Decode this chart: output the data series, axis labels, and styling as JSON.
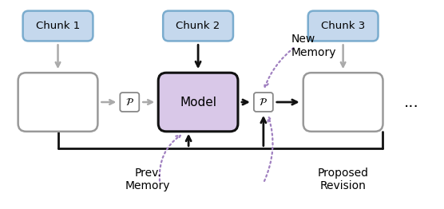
{
  "fig_width": 5.56,
  "fig_height": 2.62,
  "dpi": 100,
  "chunk_color": "#c5d8ed",
  "chunk_border": "#7aacce",
  "memory_color": "#ffffff",
  "memory_border": "#999999",
  "model_color": "#d9c8e8",
  "model_border": "#111111",
  "prompt_color": "#ffffff",
  "prompt_border": "#888888",
  "gray_arrow": "#aaaaaa",
  "black_arrow": "#111111",
  "purple_arrow": "#a080c0",
  "label_new_memory": "New\nMemory",
  "label_prev_memory": "Prev.\nMemory",
  "label_proposed": "Proposed\nRevision",
  "label_dots": "...",
  "chunk_labels": [
    "Chunk 1",
    "Chunk 2",
    "Chunk 3"
  ],
  "model_label": "Model",
  "prompt_label": "P"
}
